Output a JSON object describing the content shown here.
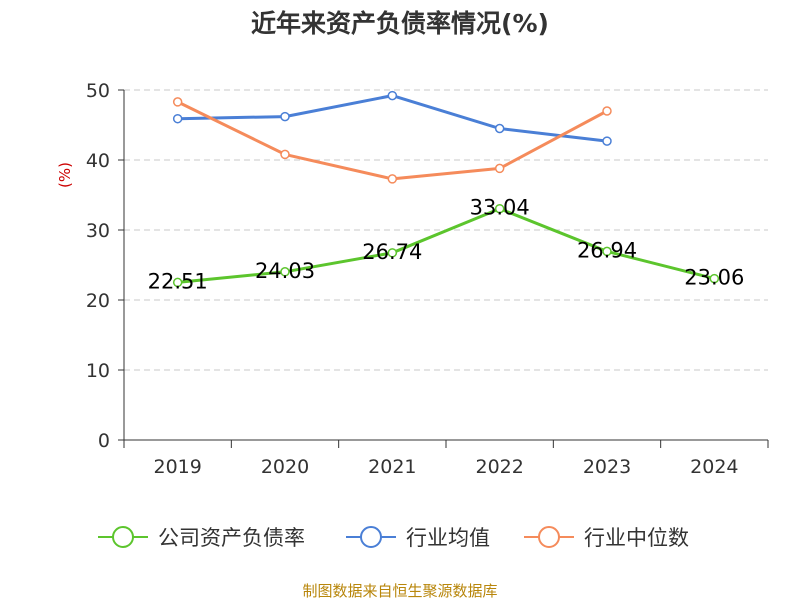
{
  "title": "近年来资产负债率情况(%)",
  "source": "制图数据来自恒生聚源数据库",
  "chart_data": {
    "type": "line",
    "title": "近年来资产负债率情况(%)",
    "xlabel": "",
    "ylabel": "(%)",
    "categories": [
      "2019",
      "2020",
      "2021",
      "2022",
      "2023",
      "2024"
    ],
    "ylim": [
      0,
      50
    ],
    "yticks": [
      0,
      10,
      20,
      30,
      40,
      50
    ],
    "grid": true,
    "legend_position": "bottom",
    "series": [
      {
        "name": "公司资产负债率",
        "color": "#5cc52d",
        "values": [
          22.51,
          24.03,
          26.74,
          33.04,
          26.94,
          23.06
        ],
        "labels": [
          "22.51",
          "24.03",
          "26.74",
          "33.04",
          "26.94",
          "23.06"
        ]
      },
      {
        "name": "行业均值",
        "color": "#4a7fd6",
        "values": [
          45.9,
          46.2,
          49.2,
          44.5,
          42.7,
          null
        ]
      },
      {
        "name": "行业中位数",
        "color": "#f58b5b",
        "values": [
          48.3,
          40.8,
          37.3,
          38.8,
          47.0,
          null
        ]
      }
    ]
  }
}
